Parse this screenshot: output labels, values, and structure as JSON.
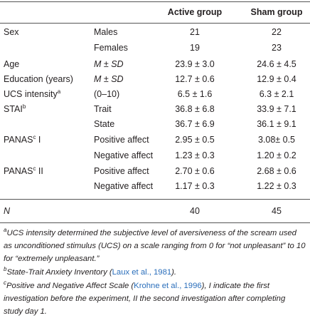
{
  "table": {
    "columns": [
      "Active group",
      "Sham group"
    ],
    "rows": [
      {
        "label": "Sex",
        "sub": "Males",
        "values": [
          "21",
          "22"
        ]
      },
      {
        "sub": "Females",
        "values": [
          "19",
          "23"
        ]
      },
      {
        "label": "Age",
        "sub": "M ± SD",
        "sub_italic": true,
        "values": [
          "23.9 ± 3.0",
          "24.6 ± 4.5"
        ]
      },
      {
        "label": "Education (years)",
        "sub": "M ± SD",
        "sub_italic": true,
        "values": [
          "12.7 ± 0.6",
          "12.9 ± 0.4"
        ]
      },
      {
        "label": "UCS intensity",
        "label_sup": "a",
        "sub": "(0–10)",
        "values": [
          "6.5 ± 1.6",
          "6.3 ± 2.1"
        ]
      },
      {
        "label": "STAI",
        "label_sup": "b",
        "sub": "Trait",
        "values": [
          "36.8 ± 6.8",
          "33.9 ± 7.1"
        ]
      },
      {
        "sub": "State",
        "values": [
          "36.7 ± 6.9",
          "36.1 ± 9.1"
        ]
      },
      {
        "label": "PANAS",
        "label_sup": "c",
        "label_suffix": " I",
        "sub": "Positive affect",
        "values": [
          "2.95 ± 0.5",
          "3.08± 0.5"
        ]
      },
      {
        "sub": "Negative affect",
        "values": [
          "1.23 ± 0.3",
          "1.20 ± 0.2"
        ]
      },
      {
        "label": "PANAS",
        "label_sup": "c",
        "label_suffix": " II",
        "sub": "Positive affect",
        "values": [
          "2.70 ± 0.6",
          "2.68 ± 0.6"
        ]
      },
      {
        "sub": "Negative affect",
        "values": [
          "1.17 ± 0.3",
          "1.22 ± 0.3"
        ]
      }
    ],
    "total": {
      "label": "N",
      "values": [
        "40",
        "45"
      ]
    }
  },
  "footnotes": [
    {
      "mark": "a",
      "before": "UCS intensity determined the subjective level of aversiveness of the scream used as unconditioned stimulus (UCS) on a scale ranging from 0 for “not unpleasant” to 10 for “extremely unpleasant.”"
    },
    {
      "mark": "b",
      "before": "State-Trait Anxiety Inventory (",
      "link": "Laux et al., 1981",
      "after": ")."
    },
    {
      "mark": "c",
      "before": "Positive and Negative Affect Scale (",
      "link": "Krohne et al., 1996",
      "after": "), I indicate the first investigation before the experiment, II the second investigation after completing study day 1."
    }
  ]
}
